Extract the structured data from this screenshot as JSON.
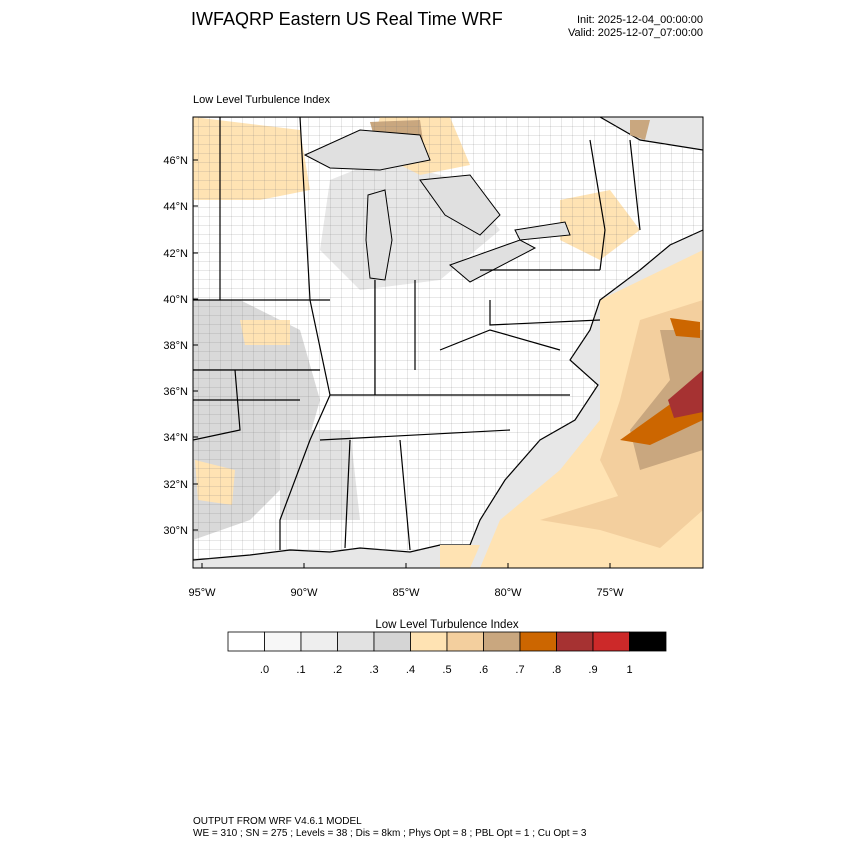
{
  "header": {
    "title": "IWFAQRP Eastern US Real Time WRF",
    "init": "Init: 2025-12-04_00:00:00",
    "valid": "Valid: 2025-12-07_07:00:00"
  },
  "panel": {
    "title": "Low Level Turbulence Index",
    "lat_labels": [
      "46°N",
      "44°N",
      "42°N",
      "40°N",
      "38°N",
      "36°N",
      "34°N",
      "32°N",
      "30°N"
    ],
    "lon_labels": [
      "95°W",
      "90°W",
      "85°W",
      "80°W",
      "75°W"
    ]
  },
  "legend": {
    "title": "Low Level Turbulence Index",
    "tick_labels": [
      ".0",
      ".1",
      ".2",
      ".3",
      ".4",
      ".5",
      ".6",
      ".7",
      ".8",
      ".9",
      "1"
    ],
    "colors": [
      "#ffffff",
      "#f7f7f7",
      "#eeeeee",
      "#e2e2e2",
      "#d5d5d5",
      "#ffe3b3",
      "#f3cf9e",
      "#c9a77f",
      "#cc6600",
      "#a63232",
      "#cc2929",
      "#000000"
    ]
  },
  "map_colors": {
    "ocean": "#e7e7e7",
    "lake": "#e0e0e0",
    "land_low": "#ffffff",
    "land_mid": "#d9d9d9",
    "light_orange": "#ffe3b3",
    "tan": "#f3cf9e",
    "brown": "#c9a77f",
    "orange": "#cc6600",
    "dark_red": "#a63232"
  },
  "footer": {
    "line1": "OUTPUT FROM WRF V4.6.1 MODEL",
    "line2": "WE = 310 ; SN = 275 ; Levels = 38 ; Dis = 8km ; Phys Opt = 8 ; PBL Opt = 1 ; Cu Opt = 3"
  }
}
